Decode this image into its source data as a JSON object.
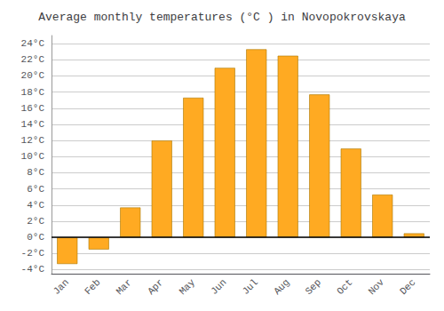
{
  "chart_data": {
    "type": "bar",
    "title": "Average monthly temperatures (°C ) in Novopokrovskaya",
    "categories": [
      "Jan",
      "Feb",
      "Mar",
      "Apr",
      "May",
      "Jun",
      "Jul",
      "Aug",
      "Sep",
      "Oct",
      "Nov",
      "Dec"
    ],
    "values": [
      -3.3,
      -1.5,
      3.7,
      12.0,
      17.3,
      21.0,
      23.3,
      22.5,
      17.7,
      11.0,
      5.3,
      0.5
    ],
    "color": "#FFAA22",
    "ylim": [
      -4.5,
      25.0
    ],
    "yticks": [
      {
        "value": -4,
        "label": "-4°C"
      },
      {
        "value": -2,
        "label": "-2°C"
      },
      {
        "value": 0,
        "label": "0°C"
      },
      {
        "value": 2,
        "label": "2°C"
      },
      {
        "value": 4,
        "label": "4°C"
      },
      {
        "value": 6,
        "label": "6°C"
      },
      {
        "value": 8,
        "label": "8°C"
      },
      {
        "value": 10,
        "label": "10°C"
      },
      {
        "value": 12,
        "label": "12°C"
      },
      {
        "value": 14,
        "label": "14°C"
      },
      {
        "value": 16,
        "label": "16°C"
      },
      {
        "value": 18,
        "label": "18°C"
      },
      {
        "value": 20,
        "label": "20°C"
      },
      {
        "value": 22,
        "label": "22°C"
      },
      {
        "value": 24,
        "label": "24°C"
      }
    ],
    "grid": true
  }
}
